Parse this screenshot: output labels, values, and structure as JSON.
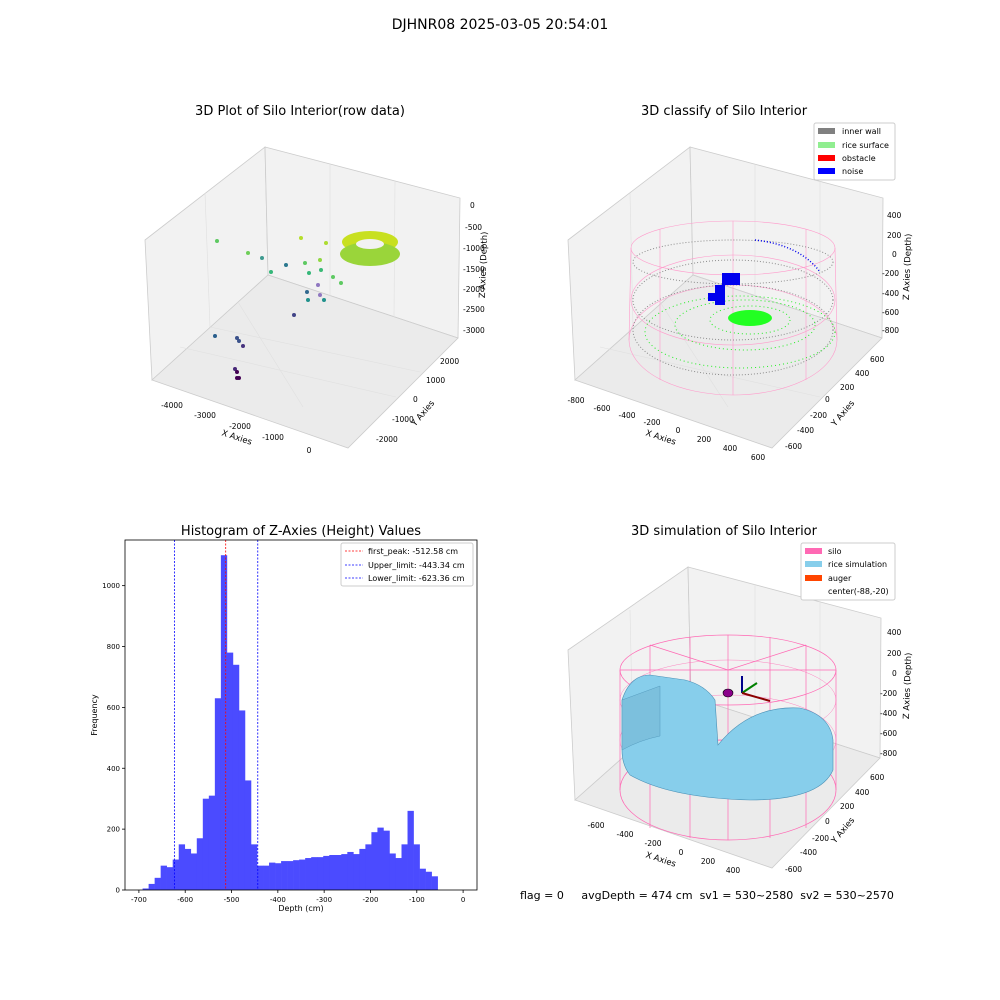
{
  "suptitle": "DJHNR08 2025-03-05 20:54:01",
  "chart_data": [
    {
      "type": "scatter",
      "title": "3D Plot of Silo Interior(row data)",
      "xlabel": "X Axies",
      "ylabel": "Y Axies",
      "zlabel": "Z Axies (Depth)",
      "x_ticks": [
        "-4000",
        "-3000",
        "-2000",
        "-1000",
        "0"
      ],
      "y_ticks": [
        "-2000",
        "-1000",
        "0",
        "1000",
        "2000"
      ],
      "z_ticks": [
        "0",
        "-500",
        "-1000",
        "-1500",
        "-2000",
        "-2500",
        "-3000"
      ],
      "colormap": [
        "#440154",
        "#31688e",
        "#35b779",
        "#fde725"
      ]
    },
    {
      "type": "scatter",
      "title": "3D classify of Silo Interior",
      "xlabel": "X Axies",
      "ylabel": "Y Axies",
      "zlabel": "Z Axies (Depth)",
      "x_ticks": [
        "-800",
        "-600",
        "-400",
        "-200",
        "0",
        "200",
        "400",
        "600"
      ],
      "y_ticks": [
        "-600",
        "-400",
        "-200",
        "0",
        "200",
        "400",
        "600"
      ],
      "z_ticks": [
        "400",
        "200",
        "0",
        "-200",
        "-400",
        "-600",
        "-800"
      ],
      "legend": [
        {
          "label": "inner wall",
          "color": "#808080"
        },
        {
          "label": "rice surface",
          "color": "#90ee90"
        },
        {
          "label": "obstacle",
          "color": "#ff0000"
        },
        {
          "label": "noise",
          "color": "#0000ff"
        }
      ],
      "legend_position": "top-right"
    },
    {
      "type": "bar",
      "title": "Histogram of Z-Axies (Height) Values",
      "xlabel": "Depth (cm)",
      "ylabel": "Frequency",
      "xlim": [
        -730,
        30
      ],
      "ylim": [
        0,
        1150
      ],
      "x_ticks": [
        -700,
        -600,
        -500,
        -400,
        -300,
        -200,
        -100,
        0
      ],
      "y_ticks": [
        0,
        200,
        400,
        600,
        800,
        1000
      ],
      "bin_width": 13,
      "bin_start": -692,
      "values": [
        5,
        20,
        40,
        80,
        75,
        100,
        150,
        135,
        120,
        170,
        300,
        310,
        630,
        1100,
        780,
        740,
        590,
        360,
        150,
        80,
        80,
        90,
        88,
        95,
        95,
        98,
        100,
        105,
        108,
        108,
        112,
        115,
        115,
        118,
        125,
        118,
        135,
        150,
        190,
        205,
        195,
        120,
        105,
        150,
        260,
        150,
        70,
        60,
        45
      ],
      "bar_color": "#4b4bff",
      "vlines": [
        {
          "label": "first_peak: -512.58 cm",
          "x": -512.58,
          "color": "#ff0000"
        },
        {
          "label": "Upper_limit: -443.34 cm",
          "x": -443.34,
          "color": "#0000ff"
        },
        {
          "label": "Lower_limit: -623.36 cm",
          "x": -623.36,
          "color": "#0000ff"
        }
      ],
      "legend_position": "top-right"
    },
    {
      "type": "surface",
      "title": "3D simulation of Silo Interior",
      "xlabel": "X Axies",
      "ylabel": "Y Axies",
      "zlabel": "Z Axies (Depth)",
      "x_ticks": [
        "-600",
        "-400",
        "-200",
        "0",
        "200",
        "400"
      ],
      "y_ticks": [
        "-600",
        "-400",
        "-200",
        "0",
        "200",
        "400",
        "600"
      ],
      "z_ticks": [
        "400",
        "200",
        "0",
        "-200",
        "-400",
        "-600",
        "-800"
      ],
      "legend": [
        {
          "label": "silo",
          "color": "#ff69b4"
        },
        {
          "label": "rice simulation",
          "color": "#87ceeb"
        },
        {
          "label": "auger",
          "color": "#ff4500"
        },
        {
          "label": "center(-88,-20)",
          "color": ""
        }
      ],
      "legend_position": "top-right"
    }
  ],
  "status": {
    "flag": "flag = 0",
    "avg_depth": "avgDepth = 474 cm",
    "sv1": "sv1 = 530~2580",
    "sv2": "sv2 = 530~2570"
  }
}
